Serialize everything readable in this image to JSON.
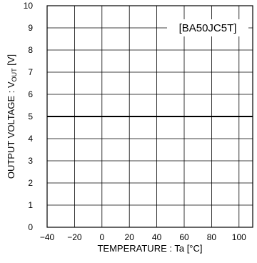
{
  "chart_data": {
    "type": "line",
    "xlabel": "TEMPERATURE : Ta [°C]",
    "ylabel_prefix": "OUTPUT VOLTAGE : V",
    "ylabel_sub": "OUT",
    "ylabel_suffix": " [V]",
    "xlim": [
      -40,
      110
    ],
    "ylim": [
      0,
      10
    ],
    "xticks": [
      "-40",
      "-20",
      "0",
      "20",
      "40",
      "60",
      "80",
      "100"
    ],
    "yticks": [
      "0",
      "1",
      "2",
      "3",
      "4",
      "5",
      "6",
      "7",
      "8",
      "9",
      "10"
    ],
    "grid": true,
    "legend_position": "top-right",
    "series": [
      {
        "name": "[BA50JC5T]",
        "x": [
          -40,
          110
        ],
        "y": [
          5.0,
          5.0
        ]
      }
    ]
  }
}
